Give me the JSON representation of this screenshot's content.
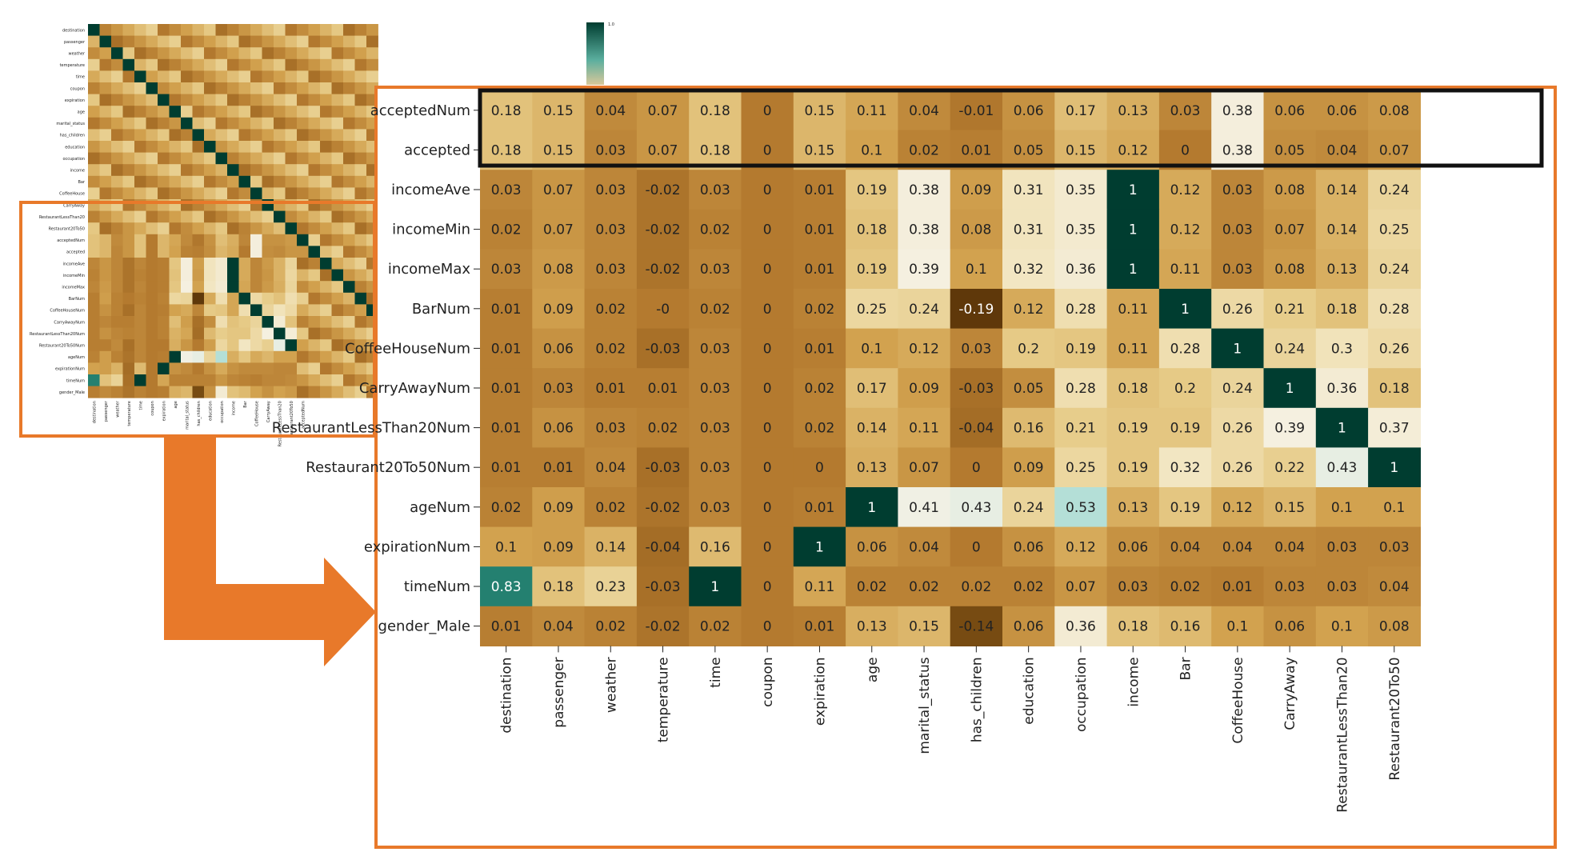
{
  "colors": {
    "accent_orange": "#E8792A",
    "highlight_box": "#111111",
    "scale_low": "#7A4A10",
    "scale_mid": "#F3EEDB",
    "scale_high": "#003D30"
  },
  "colorbar": {
    "top_label": "1.0"
  },
  "chart_data": {
    "type": "heatmap",
    "title": "",
    "xlabel": "",
    "ylabel": "",
    "highlighted_rows": [
      "acceptedNum",
      "accepted"
    ],
    "columns": [
      "destination",
      "passenger",
      "weather",
      "temperature",
      "time",
      "coupon",
      "expiration",
      "age",
      "marital_status",
      "has_children",
      "education",
      "occupation",
      "income",
      "Bar",
      "CoffeeHouse",
      "CarryAway",
      "RestaurantLessThan20",
      "Restaurant20To50"
    ],
    "rows": [
      {
        "label": "acceptedNum",
        "values": [
          0.18,
          0.15,
          0.04,
          0.07,
          0.18,
          0,
          0.15,
          0.11,
          0.04,
          -0.01,
          0.06,
          0.17,
          0.13,
          0.03,
          0.38,
          0.06,
          0.06,
          0.08
        ]
      },
      {
        "label": "accepted",
        "values": [
          0.18,
          0.15,
          0.03,
          0.07,
          0.18,
          0,
          0.15,
          0.1,
          0.02,
          0.01,
          0.05,
          0.15,
          0.12,
          0,
          0.38,
          0.05,
          0.04,
          0.07
        ]
      },
      {
        "label": "incomeAve",
        "values": [
          0.03,
          0.07,
          0.03,
          -0.02,
          0.03,
          0,
          0.01,
          0.19,
          0.38,
          0.09,
          0.31,
          0.35,
          1,
          0.12,
          0.03,
          0.08,
          0.14,
          0.24
        ]
      },
      {
        "label": "incomeMin",
        "values": [
          0.02,
          0.07,
          0.03,
          -0.02,
          0.02,
          0,
          0.01,
          0.18,
          0.38,
          0.08,
          0.31,
          0.35,
          1,
          0.12,
          0.03,
          0.07,
          0.14,
          0.25
        ]
      },
      {
        "label": "incomeMax",
        "values": [
          0.03,
          0.08,
          0.03,
          -0.02,
          0.03,
          0,
          0.01,
          0.19,
          0.39,
          0.1,
          0.32,
          0.36,
          1,
          0.11,
          0.03,
          0.08,
          0.13,
          0.24
        ]
      },
      {
        "label": "BarNum",
        "values": [
          0.01,
          0.09,
          0.02,
          "-0",
          0.02,
          0,
          0.02,
          0.25,
          0.24,
          -0.19,
          0.12,
          0.28,
          0.11,
          1,
          0.26,
          0.21,
          0.18,
          0.28
        ]
      },
      {
        "label": "CoffeeHouseNum",
        "values": [
          0.01,
          0.06,
          0.02,
          -0.03,
          0.03,
          0,
          0.01,
          0.1,
          0.12,
          0.03,
          0.2,
          0.19,
          0.11,
          0.28,
          1,
          0.24,
          0.3,
          0.26
        ]
      },
      {
        "label": "CarryAwayNum",
        "values": [
          0.01,
          0.03,
          0.01,
          0.01,
          0.03,
          0,
          0.02,
          0.17,
          0.09,
          -0.03,
          0.05,
          0.28,
          0.18,
          0.2,
          0.24,
          1,
          0.36,
          0.18
        ]
      },
      {
        "label": "RestaurantLessThan20Num",
        "values": [
          0.01,
          0.06,
          0.03,
          0.02,
          0.03,
          0,
          0.02,
          0.14,
          0.11,
          -0.04,
          0.16,
          0.21,
          0.19,
          0.19,
          0.26,
          0.39,
          1,
          0.37
        ]
      },
      {
        "label": "Restaurant20To50Num",
        "values": [
          0.01,
          0.01,
          0.04,
          -0.03,
          0.03,
          0,
          0,
          0.13,
          0.07,
          0,
          0.09,
          0.25,
          0.19,
          0.32,
          0.26,
          0.22,
          0.43,
          1
        ]
      },
      {
        "label": "ageNum",
        "values": [
          0.02,
          0.09,
          0.02,
          -0.02,
          0.03,
          0,
          0.01,
          1,
          0.41,
          0.43,
          0.24,
          0.53,
          0.13,
          0.19,
          0.12,
          0.15,
          0.1,
          0.1
        ]
      },
      {
        "label": "expirationNum",
        "values": [
          0.1,
          0.09,
          0.14,
          -0.04,
          0.16,
          0,
          1,
          0.06,
          0.04,
          0,
          0.06,
          0.12,
          0.06,
          0.04,
          0.04,
          0.04,
          0.03,
          0.03
        ]
      },
      {
        "label": "timeNum",
        "values": [
          0.83,
          0.18,
          0.23,
          -0.03,
          1,
          0,
          0.11,
          0.02,
          0.02,
          0.02,
          0.02,
          0.07,
          0.03,
          0.02,
          0.01,
          0.03,
          0.03,
          0.04
        ]
      },
      {
        "label": "gender_Male",
        "values": [
          0.01,
          0.04,
          0.02,
          -0.02,
          0.02,
          0,
          0.01,
          0.13,
          0.15,
          -0.14,
          0.06,
          0.36,
          0.18,
          0.16,
          0.1,
          0.06,
          0.1,
          0.08
        ]
      }
    ]
  },
  "thumbnail": {
    "rows": [
      "destination",
      "passenger",
      "weather",
      "temperature",
      "time",
      "coupon",
      "expiration",
      "age",
      "marital_status",
      "has_children",
      "education",
      "occupation",
      "income",
      "Bar",
      "CoffeeHouse",
      "CarryAway",
      "RestaurantLessThan20",
      "Restaurant20To50",
      "acceptedNum",
      "accepted",
      "incomeAve",
      "incomeMin",
      "incomeMax",
      "BarNum",
      "CoffeeHouseNum",
      "CarryAwayNum",
      "RestaurantLessThan20Num",
      "Restaurant20To50Num",
      "ageNum",
      "expirationNum",
      "timeNum",
      "gender_Male"
    ],
    "columns": [
      "destination",
      "passenger",
      "weather",
      "temperature",
      "time",
      "coupon",
      "expiration",
      "age",
      "marital_status",
      "has_children",
      "education",
      "occupation",
      "income",
      "Bar",
      "CoffeeHouse",
      "CarryAway",
      "RestaurantLessThan20",
      "Restaurant20To50",
      "acceptedNum"
    ]
  }
}
